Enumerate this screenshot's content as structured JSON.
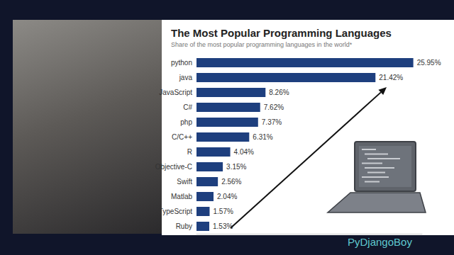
{
  "chart_data": {
    "type": "bar",
    "title": "The Most Popular Programming Languages",
    "subtitle": "Share of the most popular programming languages in the world*",
    "orientation": "horizontal",
    "categories": [
      "python",
      "java",
      "JavaScript",
      "C#",
      "php",
      "C/C++",
      "R",
      "Objective-C",
      "Swift",
      "Matlab",
      "TypeScript",
      "Ruby"
    ],
    "values": [
      25.95,
      21.42,
      8.26,
      7.62,
      7.37,
      6.31,
      4.04,
      3.15,
      2.56,
      2.04,
      1.57,
      1.53
    ],
    "value_labels": [
      "25.95%",
      "21.42%",
      "8.26%",
      "7.62%",
      "7.37%",
      "6.31%",
      "4.04%",
      "3.15%",
      "2.56%",
      "2.04%",
      "1.57%",
      "1.53%"
    ],
    "color": "#1e3f7e",
    "xlim": [
      0,
      27
    ],
    "data_labels": true,
    "tick_labels": "y",
    "grid": false,
    "annotation": "PyDjangoBoy"
  }
}
